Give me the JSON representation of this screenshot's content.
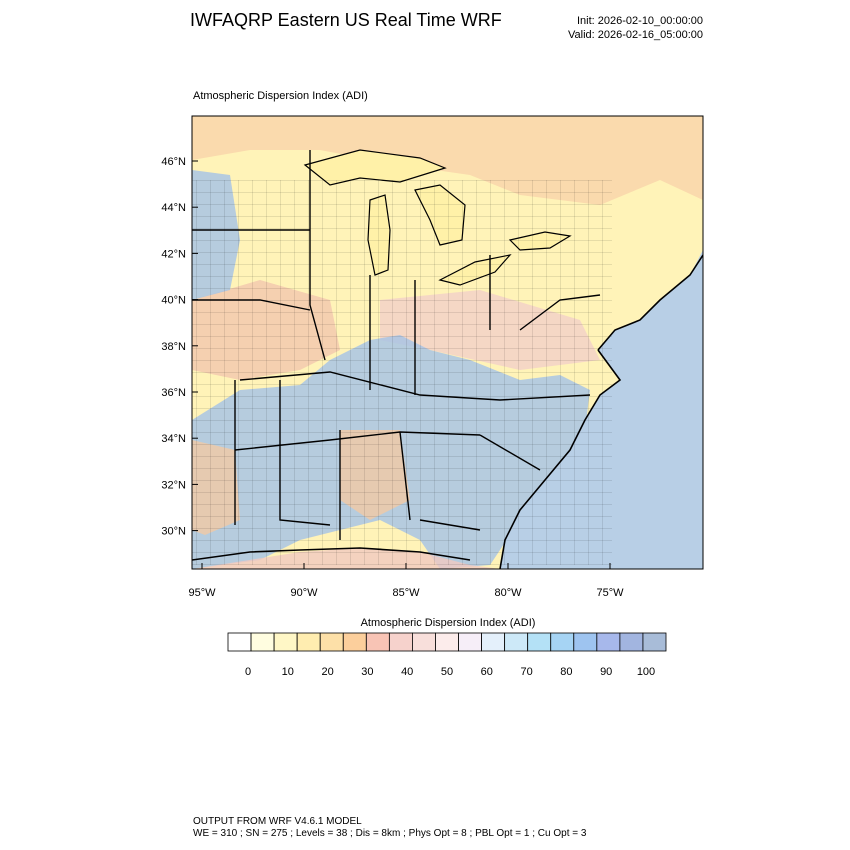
{
  "header": {
    "title": "IWFAQRP Eastern US Real Time WRF",
    "init": "Init: 2026-02-10_00:00:00",
    "valid": "Valid: 2026-02-16_05:00:00"
  },
  "map": {
    "subtitle": "Atmospheric Dispersion Index   (ADI)",
    "lat_labels": [
      "46°N",
      "44°N",
      "42°N",
      "40°N",
      "38°N",
      "36°N",
      "34°N",
      "32°N",
      "30°N"
    ],
    "lon_labels": [
      "95°W",
      "90°W",
      "85°W",
      "80°W",
      "75°W"
    ],
    "colors": {
      "land_yellow": "#fff3b8",
      "land_orange": "#f5c9a0",
      "land_pink": "#f3cfc8",
      "high_blue": "#a9c4e4",
      "lake": "#fff1a8",
      "ocean": "#b8cfe6"
    }
  },
  "colorbar": {
    "title": "Atmospheric Dispersion Index  (ADI)",
    "tick_labels": [
      "0",
      "10",
      "20",
      "30",
      "40",
      "50",
      "60",
      "70",
      "80",
      "90",
      "100"
    ],
    "colors": [
      "#ffffff",
      "#fffde0",
      "#fff7c6",
      "#ffedb0",
      "#fde0a8",
      "#fccf9c",
      "#f8c4b5",
      "#f6d2cc",
      "#f8dfdb",
      "#fceceb",
      "#f6eef8",
      "#e4f0fb",
      "#cde9f8",
      "#b4e1f6",
      "#a6d4f4",
      "#9ec4f0",
      "#a7b8eb",
      "#a2b5e0",
      "#a8bcd8"
    ]
  },
  "footer": {
    "line1": "OUTPUT FROM WRF V4.6.1 MODEL",
    "line2": "WE = 310 ; SN = 275 ; Levels = 38 ; Dis = 8km ; Phys Opt = 8 ; PBL Opt = 1 ; Cu Opt = 3"
  }
}
